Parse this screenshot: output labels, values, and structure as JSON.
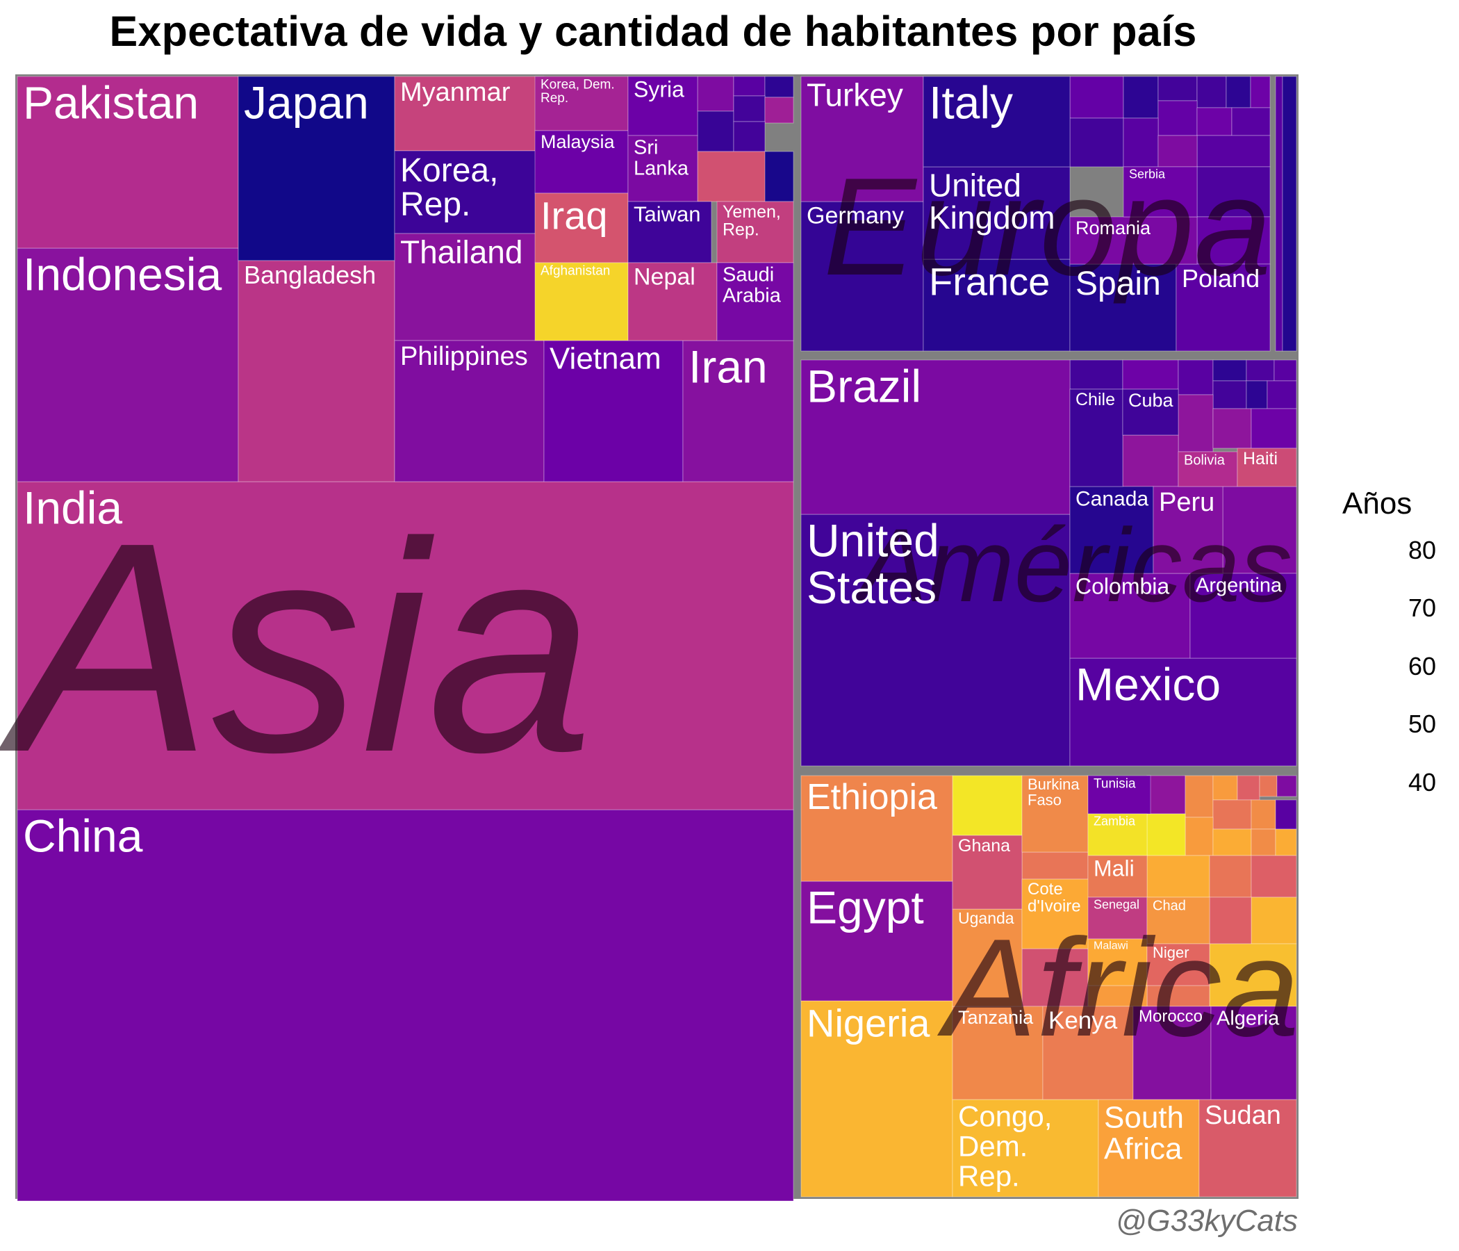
{
  "chart_data": {
    "type": "treemap",
    "title": "Expectativa de vida y cantidad de habitantes por país",
    "size_variable": "population",
    "color_variable": "life_expectancy",
    "legend": {
      "title": "Años",
      "ticks": [
        "80",
        "70",
        "60",
        "50",
        "40"
      ],
      "range": [
        40,
        83
      ],
      "palette": [
        "#F0F921",
        "#FCA636",
        "#E16462",
        "#B12A90",
        "#6A00A8",
        "#0D0887"
      ],
      "placement": "right"
    },
    "groups": [
      {
        "name": "Asia",
        "countries": [
          {
            "name": "China",
            "life_expectancy": 73.0
          },
          {
            "name": "India",
            "life_expectancy": 64.7
          },
          {
            "name": "Indonesia",
            "life_expectancy": 70.7
          },
          {
            "name": "Pakistan",
            "life_expectancy": 65.5
          },
          {
            "name": "Japan",
            "life_expectancy": 82.6
          },
          {
            "name": "Bangladesh",
            "life_expectancy": 64.1
          },
          {
            "name": "Myanmar",
            "life_expectancy": 62.1
          },
          {
            "name": "Korea, Rep.",
            "life_expectancy": 78.6
          },
          {
            "name": "Thailand",
            "life_expectancy": 70.6
          },
          {
            "name": "Philippines",
            "life_expectancy": 71.7
          },
          {
            "name": "Vietnam",
            "life_expectancy": 74.2
          },
          {
            "name": "Iran",
            "life_expectancy": 71.0
          },
          {
            "name": "Korea, Dem. Rep.",
            "life_expectancy": 67.3
          },
          {
            "name": "Malaysia",
            "life_expectancy": 74.2
          },
          {
            "name": "Iraq",
            "life_expectancy": 59.5
          },
          {
            "name": "Afghanistan",
            "life_expectancy": 43.8
          },
          {
            "name": "Syria",
            "life_expectancy": 74.1
          },
          {
            "name": "Sri Lanka",
            "life_expectancy": 72.4
          },
          {
            "name": "Taiwan",
            "life_expectancy": 78.4
          },
          {
            "name": "Nepal",
            "life_expectancy": 63.8
          },
          {
            "name": "Yemen, Rep.",
            "life_expectancy": 62.7
          },
          {
            "name": "Saudi Arabia",
            "life_expectancy": 72.8
          }
        ]
      },
      {
        "name": "Europa",
        "countries": [
          {
            "name": "Germany",
            "life_expectancy": 79.4
          },
          {
            "name": "Turkey",
            "life_expectancy": 71.8
          },
          {
            "name": "France",
            "life_expectancy": 80.7
          },
          {
            "name": "United Kingdom",
            "life_expectancy": 79.4
          },
          {
            "name": "Italy",
            "life_expectancy": 80.5
          },
          {
            "name": "Spain",
            "life_expectancy": 80.9
          },
          {
            "name": "Poland",
            "life_expectancy": 75.6
          },
          {
            "name": "Romania",
            "life_expectancy": 72.5
          },
          {
            "name": "Serbia",
            "life_expectancy": 74.0
          }
        ]
      },
      {
        "name": "Américas",
        "countries": [
          {
            "name": "United States",
            "life_expectancy": 78.2
          },
          {
            "name": "Brazil",
            "life_expectancy": 72.4
          },
          {
            "name": "Mexico",
            "life_expectancy": 76.2
          },
          {
            "name": "Colombia",
            "life_expectancy": 72.9
          },
          {
            "name": "Argentina",
            "life_expectancy": 75.3
          },
          {
            "name": "Canada",
            "life_expectancy": 80.7
          },
          {
            "name": "Peru",
            "life_expectancy": 71.4
          },
          {
            "name": "Chile",
            "life_expectancy": 78.6
          },
          {
            "name": "Cuba",
            "life_expectancy": 78.3
          },
          {
            "name": "Bolivia",
            "life_expectancy": 65.6
          },
          {
            "name": "Haiti",
            "life_expectancy": 60.9
          }
        ]
      },
      {
        "name": "Africa",
        "countries": [
          {
            "name": "Nigeria",
            "life_expectancy": 46.9
          },
          {
            "name": "Egypt",
            "life_expectancy": 71.3
          },
          {
            "name": "Ethiopia",
            "life_expectancy": 52.9
          },
          {
            "name": "Congo, Dem. Rep.",
            "life_expectancy": 46.5
          },
          {
            "name": "South Africa",
            "life_expectancy": 49.3
          },
          {
            "name": "Sudan",
            "life_expectancy": 58.6
          },
          {
            "name": "Tanzania",
            "life_expectancy": 52.5
          },
          {
            "name": "Kenya",
            "life_expectancy": 54.1
          },
          {
            "name": "Morocco",
            "life_expectancy": 71.2
          },
          {
            "name": "Algeria",
            "life_expectancy": 72.3
          },
          {
            "name": "Uganda",
            "life_expectancy": 51.5
          },
          {
            "name": "Ghana",
            "life_expectancy": 60.0
          },
          {
            "name": "Cote d'Ivoire",
            "life_expectancy": 48.3
          },
          {
            "name": "Burkina Faso",
            "life_expectancy": 52.3
          },
          {
            "name": "Tunisia",
            "life_expectancy": 73.9
          },
          {
            "name": "Zambia",
            "life_expectancy": 42.4
          },
          {
            "name": "Mali",
            "life_expectancy": 54.5
          },
          {
            "name": "Senegal",
            "life_expectancy": 63.1
          },
          {
            "name": "Chad",
            "life_expectancy": 50.7
          },
          {
            "name": "Malawi",
            "life_expectancy": 48.3
          },
          {
            "name": "Niger",
            "life_expectancy": 56.9
          }
        ]
      }
    ]
  },
  "credit": "@G33kyCats"
}
